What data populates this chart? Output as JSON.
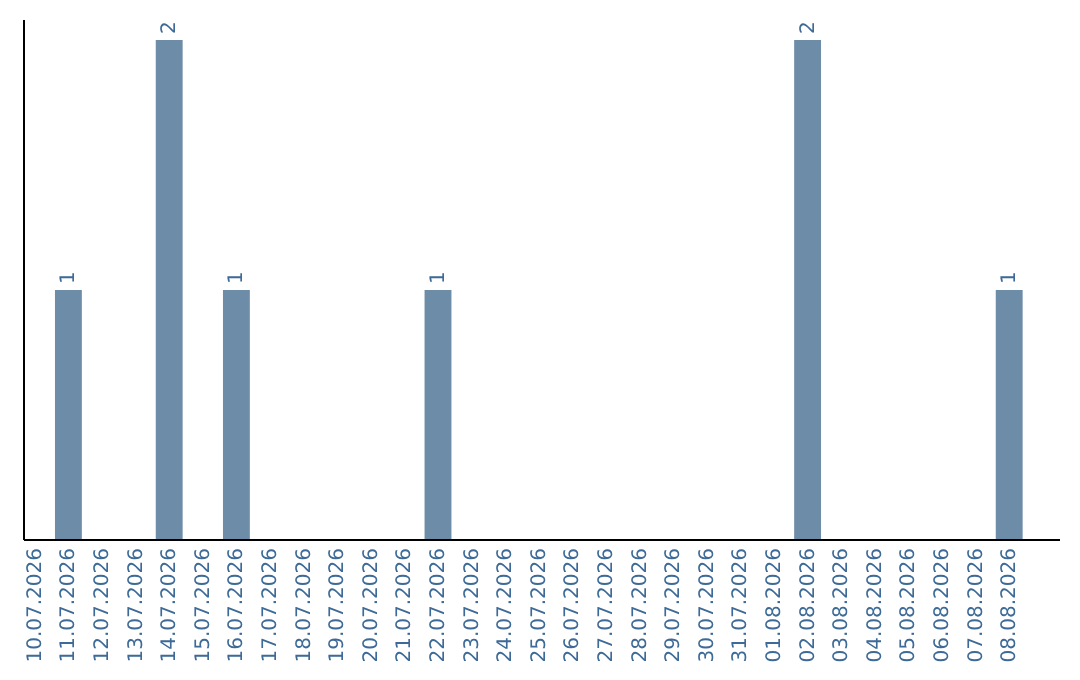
{
  "chart_data": {
    "type": "bar",
    "categories": [
      "10.07.2026",
      "11.07.2026",
      "12.07.2026",
      "13.07.2026",
      "14.07.2026",
      "15.07.2026",
      "16.07.2026",
      "17.07.2026",
      "18.07.2026",
      "19.07.2026",
      "20.07.2026",
      "21.07.2026",
      "22.07.2026",
      "23.07.2026",
      "24.07.2026",
      "25.07.2026",
      "26.07.2026",
      "27.07.2026",
      "28.07.2026",
      "29.07.2026",
      "30.07.2026",
      "31.07.2026",
      "01.08.2026",
      "02.08.2026",
      "03.08.2026",
      "04.08.2026",
      "05.08.2026",
      "06.08.2026",
      "07.08.2026",
      "08.08.2026"
    ],
    "values": [
      0,
      1,
      0,
      0,
      2,
      0,
      1,
      0,
      0,
      0,
      0,
      0,
      1,
      0,
      0,
      0,
      0,
      0,
      0,
      0,
      0,
      0,
      0,
      2,
      0,
      0,
      0,
      0,
      0,
      1
    ],
    "value_labels": [
      null,
      "1",
      null,
      null,
      "2",
      null,
      "1",
      null,
      null,
      null,
      null,
      null,
      "1",
      null,
      null,
      null,
      null,
      null,
      null,
      null,
      null,
      null,
      null,
      "2",
      null,
      null,
      null,
      null,
      null,
      "1"
    ],
    "color": "#6d8ca8",
    "tick_labels": "x"
  }
}
